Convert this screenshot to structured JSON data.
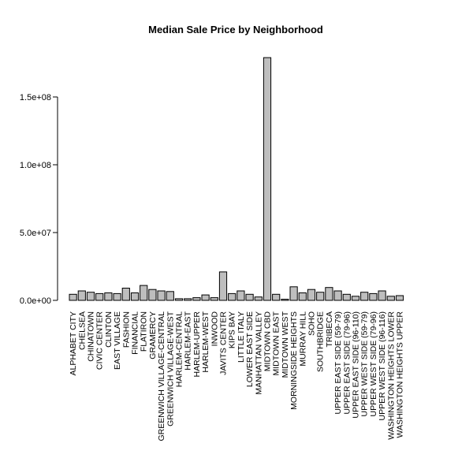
{
  "chart_data": {
    "type": "bar",
    "title": "Median Sale Price by Neighborhood",
    "xlabel": "",
    "ylabel": "",
    "ylim": [
      0,
      180000000
    ],
    "yticks": [
      0,
      50000000,
      100000000,
      150000000
    ],
    "ytick_labels": [
      "0.0e+00",
      "5.0e+07",
      "1.0e+08",
      "1.5e+08"
    ],
    "grid": false,
    "categories": [
      "ALPHABET CITY",
      "CHELSEA",
      "CHINATOWN",
      "CIVIC CENTER",
      "CLINTON",
      "EAST VILLAGE",
      "FASHION",
      "FINANCIAL",
      "FLATIRON",
      "GRAMERCY",
      "GREENWICH VILLAGE-CENTRAL",
      "GREENWICH VILLAGE-WEST",
      "HARLEM-CENTRAL",
      "HARLEM-EAST",
      "HARLEM-UPPER",
      "HARLEM-WEST",
      "INWOOD",
      "JAVITS CENTER",
      "KIPS BAY",
      "LITTLE ITALY",
      "LOWER EAST SIDE",
      "MANHATTAN VALLEY",
      "MIDTOWN CBD",
      "MIDTOWN EAST",
      "MIDTOWN WEST",
      "MORNINGSIDE HEIGHTS",
      "MURRAY HILL",
      "SOHO",
      "SOUTHBRIDGE",
      "TRIBECA",
      "UPPER EAST SIDE (59-79)",
      "UPPER EAST SIDE (79-96)",
      "UPPER EAST SIDE (96-110)",
      "UPPER WEST SIDE (59-79)",
      "UPPER WEST SIDE (79-96)",
      "UPPER WEST SIDE (96-116)",
      "WASHINGTON HEIGHTS LOWER",
      "WASHINGTON HEIGHTS UPPER"
    ],
    "values": [
      4500000,
      7000000,
      6000000,
      5000000,
      5500000,
      5000000,
      9000000,
      5500000,
      11000000,
      8000000,
      7000000,
      6500000,
      1200000,
      1200000,
      2000000,
      4000000,
      2000000,
      21000000,
      5000000,
      7000000,
      4500000,
      2500000,
      179000000,
      4500000,
      800000,
      10000000,
      5500000,
      8000000,
      6000000,
      9500000,
      7000000,
      4500000,
      3000000,
      6000000,
      5000000,
      7000000,
      3000000,
      3500000
    ]
  }
}
